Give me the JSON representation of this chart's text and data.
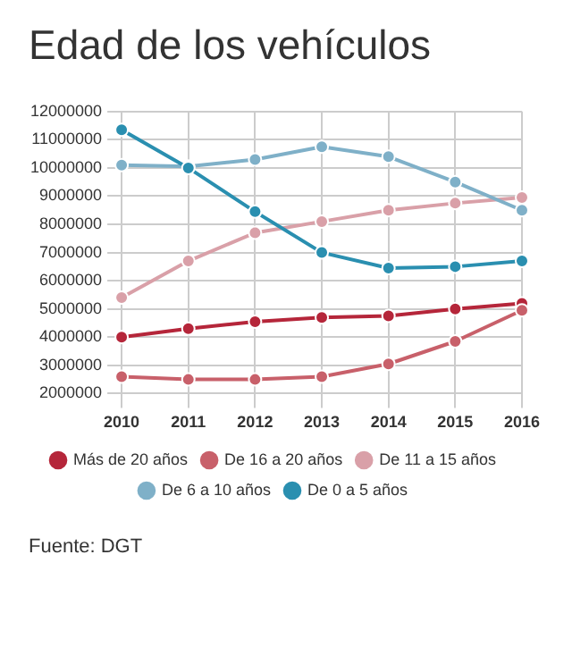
{
  "chart_data": {
    "type": "line",
    "title": "Edad de los vehículos",
    "categories": [
      "2010",
      "2011",
      "2012",
      "2013",
      "2014",
      "2015",
      "2016"
    ],
    "series": [
      {
        "name": "Más de 20 años",
        "color": "#b5263a",
        "values": [
          4000000,
          4300000,
          4550000,
          4700000,
          4750000,
          5000000,
          5200000
        ]
      },
      {
        "name": "De 16 a 20 años",
        "color": "#c8606a",
        "values": [
          2600000,
          2500000,
          2500000,
          2600000,
          3050000,
          3850000,
          4950000
        ]
      },
      {
        "name": "De 11 a 15 años",
        "color": "#d9a0a8",
        "values": [
          5400000,
          6700000,
          7700000,
          8100000,
          8500000,
          8750000,
          8950000
        ]
      },
      {
        "name": "De 6 a 10 años",
        "color": "#7fb0c8",
        "values": [
          10100000,
          10050000,
          10300000,
          10750000,
          10400000,
          9500000,
          8500000
        ]
      },
      {
        "name": "De 0 a 5 años",
        "color": "#2a8fb0",
        "values": [
          11350000,
          10000000,
          8450000,
          7000000,
          6450000,
          6500000,
          6700000
        ]
      }
    ],
    "ylim": [
      2000000,
      12000000
    ],
    "yticks": [
      2000000,
      3000000,
      4000000,
      5000000,
      6000000,
      7000000,
      8000000,
      9000000,
      10000000,
      11000000,
      12000000
    ],
    "grid": true,
    "legend": "bottom",
    "marker": "circle",
    "line_style": "solid",
    "annotations": [
      "Fuente: DGT"
    ]
  }
}
